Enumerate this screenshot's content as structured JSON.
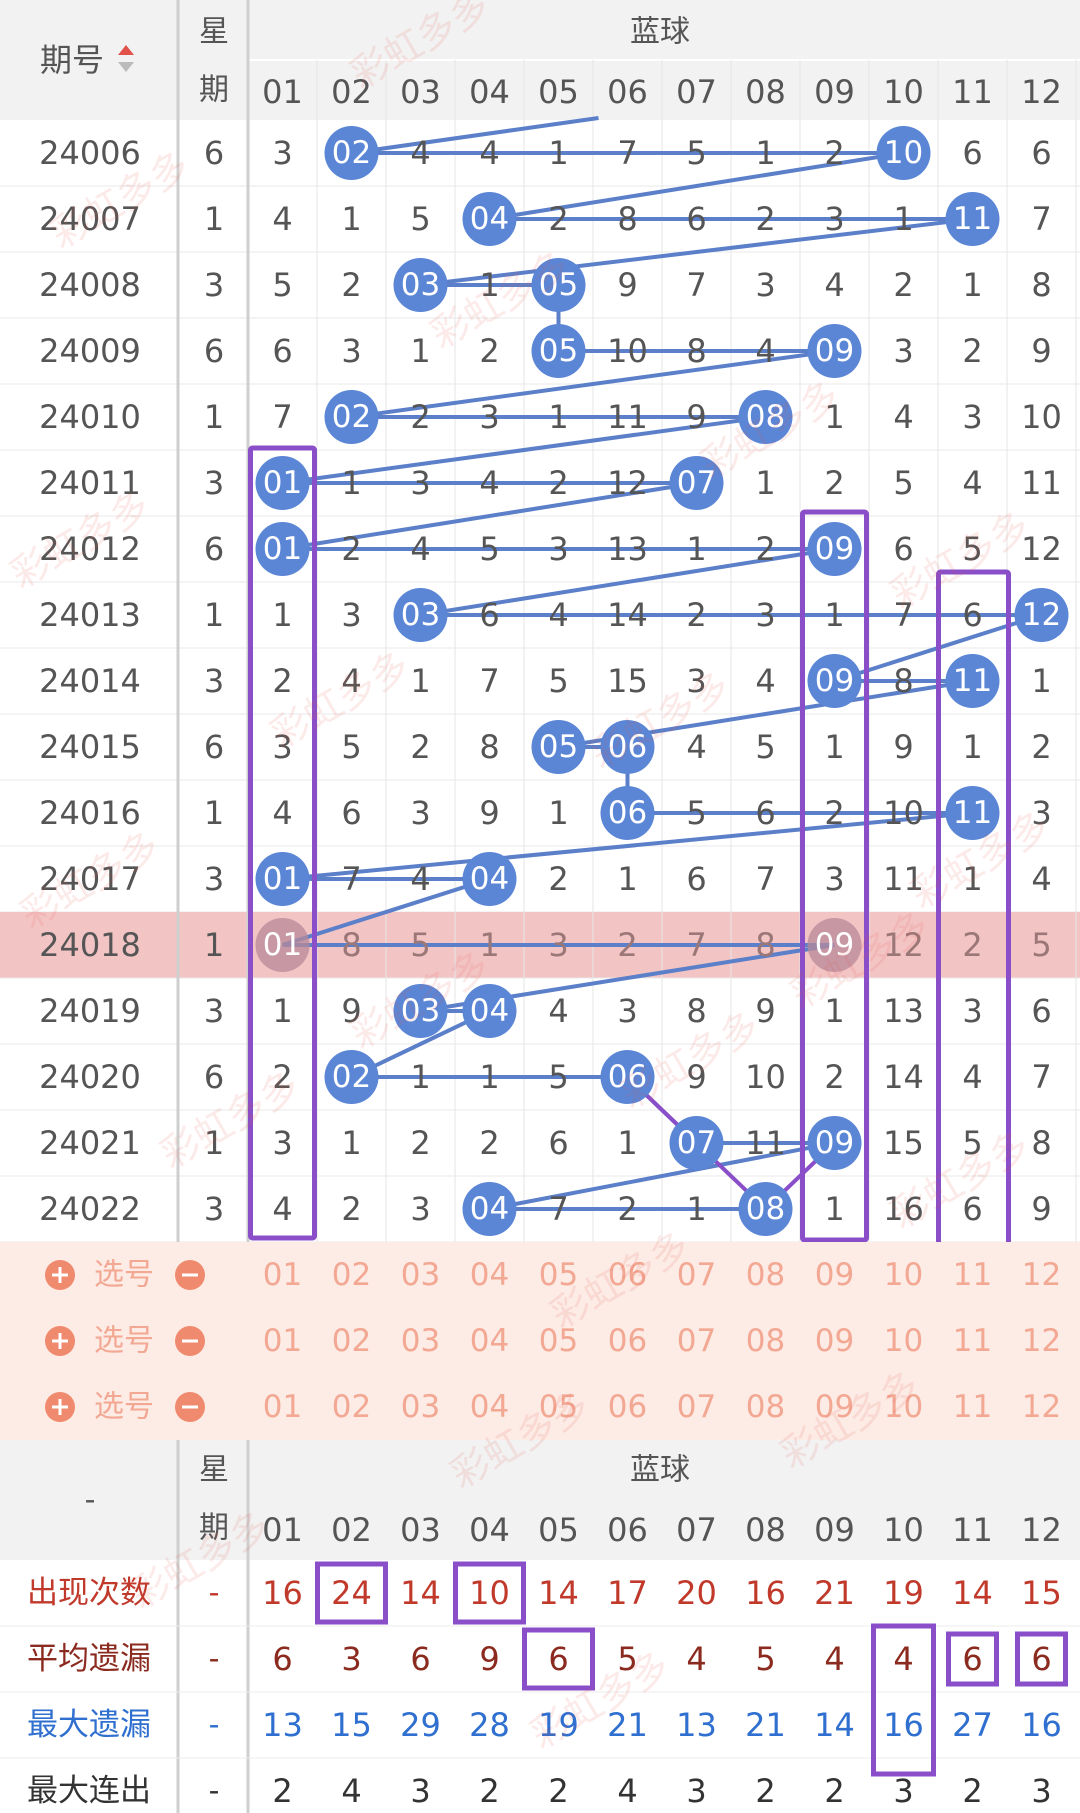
{
  "header": {
    "period_label": "期号",
    "weekday_label_top": "星",
    "weekday_label_bottom": "期",
    "section_label": "蓝球",
    "columns": [
      "01",
      "02",
      "03",
      "04",
      "05",
      "06",
      "07",
      "08",
      "09",
      "10",
      "11",
      "12"
    ]
  },
  "rows": [
    {
      "period": "24006",
      "weekday": "6",
      "cells": [
        "3",
        "02",
        "4",
        "4",
        "1",
        "7",
        "5",
        "1",
        "2",
        "10",
        "6",
        "6"
      ],
      "hit": [
        2,
        10
      ]
    },
    {
      "period": "24007",
      "weekday": "1",
      "cells": [
        "4",
        "1",
        "5",
        "04",
        "2",
        "8",
        "6",
        "2",
        "3",
        "1",
        "11",
        "7"
      ],
      "hit": [
        4,
        11
      ]
    },
    {
      "period": "24008",
      "weekday": "3",
      "cells": [
        "5",
        "2",
        "03",
        "1",
        "05",
        "9",
        "7",
        "3",
        "4",
        "2",
        "1",
        "8"
      ],
      "hit": [
        3,
        5
      ]
    },
    {
      "period": "24009",
      "weekday": "6",
      "cells": [
        "6",
        "3",
        "1",
        "2",
        "05",
        "10",
        "8",
        "4",
        "09",
        "3",
        "2",
        "9"
      ],
      "hit": [
        5,
        9
      ]
    },
    {
      "period": "24010",
      "weekday": "1",
      "cells": [
        "7",
        "02",
        "2",
        "3",
        "1",
        "11",
        "9",
        "08",
        "1",
        "4",
        "3",
        "10"
      ],
      "hit": [
        2,
        8
      ]
    },
    {
      "period": "24011",
      "weekday": "3",
      "cells": [
        "01",
        "1",
        "3",
        "4",
        "2",
        "12",
        "07",
        "1",
        "2",
        "5",
        "4",
        "11"
      ],
      "hit": [
        1,
        7
      ]
    },
    {
      "period": "24012",
      "weekday": "6",
      "cells": [
        "01",
        "2",
        "4",
        "5",
        "3",
        "13",
        "1",
        "2",
        "09",
        "6",
        "5",
        "12"
      ],
      "hit": [
        1,
        9
      ]
    },
    {
      "period": "24013",
      "weekday": "1",
      "cells": [
        "1",
        "3",
        "03",
        "6",
        "4",
        "14",
        "2",
        "3",
        "1",
        "7",
        "6",
        "12"
      ],
      "hit": [
        3,
        12
      ]
    },
    {
      "period": "24014",
      "weekday": "3",
      "cells": [
        "2",
        "4",
        "1",
        "7",
        "5",
        "15",
        "3",
        "4",
        "09",
        "8",
        "11",
        "1"
      ],
      "hit": [
        9,
        11
      ]
    },
    {
      "period": "24015",
      "weekday": "6",
      "cells": [
        "3",
        "5",
        "2",
        "8",
        "05",
        "06",
        "4",
        "5",
        "1",
        "9",
        "1",
        "2"
      ],
      "hit": [
        5,
        6
      ]
    },
    {
      "period": "24016",
      "weekday": "1",
      "cells": [
        "4",
        "6",
        "3",
        "9",
        "1",
        "06",
        "5",
        "6",
        "2",
        "10",
        "11",
        "3"
      ],
      "hit": [
        6,
        11
      ]
    },
    {
      "period": "24017",
      "weekday": "3",
      "cells": [
        "01",
        "7",
        "4",
        "04",
        "2",
        "1",
        "6",
        "7",
        "3",
        "11",
        "1",
        "4"
      ],
      "hit": [
        1,
        4
      ]
    },
    {
      "period": "24018",
      "weekday": "1",
      "cells": [
        "01",
        "8",
        "5",
        "1",
        "3",
        "2",
        "7",
        "8",
        "09",
        "12",
        "2",
        "5"
      ],
      "hit": [
        1,
        9
      ],
      "highlight": true
    },
    {
      "period": "24019",
      "weekday": "3",
      "cells": [
        "1",
        "9",
        "03",
        "04",
        "4",
        "3",
        "8",
        "9",
        "1",
        "13",
        "3",
        "6"
      ],
      "hit": [
        3,
        4
      ]
    },
    {
      "period": "24020",
      "weekday": "6",
      "cells": [
        "2",
        "02",
        "1",
        "1",
        "5",
        "06",
        "9",
        "10",
        "2",
        "14",
        "4",
        "7"
      ],
      "hit": [
        2,
        6
      ]
    },
    {
      "period": "24021",
      "weekday": "1",
      "cells": [
        "3",
        "1",
        "2",
        "2",
        "6",
        "1",
        "07",
        "11",
        "09",
        "15",
        "5",
        "8"
      ],
      "hit": [
        7,
        9
      ]
    },
    {
      "period": "24022",
      "weekday": "3",
      "cells": [
        "4",
        "2",
        "3",
        "04",
        "7",
        "2",
        "1",
        "08",
        "1",
        "16",
        "6",
        "9"
      ],
      "hit": [
        4,
        8
      ]
    }
  ],
  "picker": {
    "label": "选号",
    "rows": 3,
    "numbers": [
      "01",
      "02",
      "03",
      "04",
      "05",
      "06",
      "07",
      "08",
      "09",
      "10",
      "11",
      "12"
    ]
  },
  "stats_header": {
    "dash": "-",
    "weekday_label_top": "星",
    "weekday_label_bottom": "期",
    "section_label": "蓝球"
  },
  "stats": [
    {
      "label": "出现次数",
      "dash": "-",
      "color": "#c0392b",
      "values": [
        "16",
        "24",
        "14",
        "10",
        "14",
        "17",
        "20",
        "16",
        "21",
        "19",
        "14",
        "15"
      ]
    },
    {
      "label": "平均遗漏",
      "dash": "-",
      "color": "#8b2a1e",
      "values": [
        "6",
        "3",
        "6",
        "9",
        "6",
        "5",
        "4",
        "5",
        "4",
        "4",
        "6",
        "6"
      ]
    },
    {
      "label": "最大遗漏",
      "dash": "-",
      "color": "#2f6fcf",
      "values": [
        "13",
        "15",
        "29",
        "28",
        "19",
        "21",
        "13",
        "21",
        "14",
        "16",
        "27",
        "16"
      ]
    },
    {
      "label": "最大连出",
      "dash": "-",
      "color": "#333333",
      "values": [
        "2",
        "4",
        "3",
        "2",
        "2",
        "4",
        "3",
        "2",
        "2",
        "3",
        "2",
        "3"
      ]
    }
  ],
  "colors": {
    "ball": "#5b86d6",
    "line": "#5b7fc9",
    "purple": "#8a4fc8",
    "highlight": "#f3c4c4",
    "picker_bg": "#fdebe5",
    "picker_text": "#f2a893",
    "header_bg": "#f2f2f2"
  },
  "watermark": "彩虹多多"
}
